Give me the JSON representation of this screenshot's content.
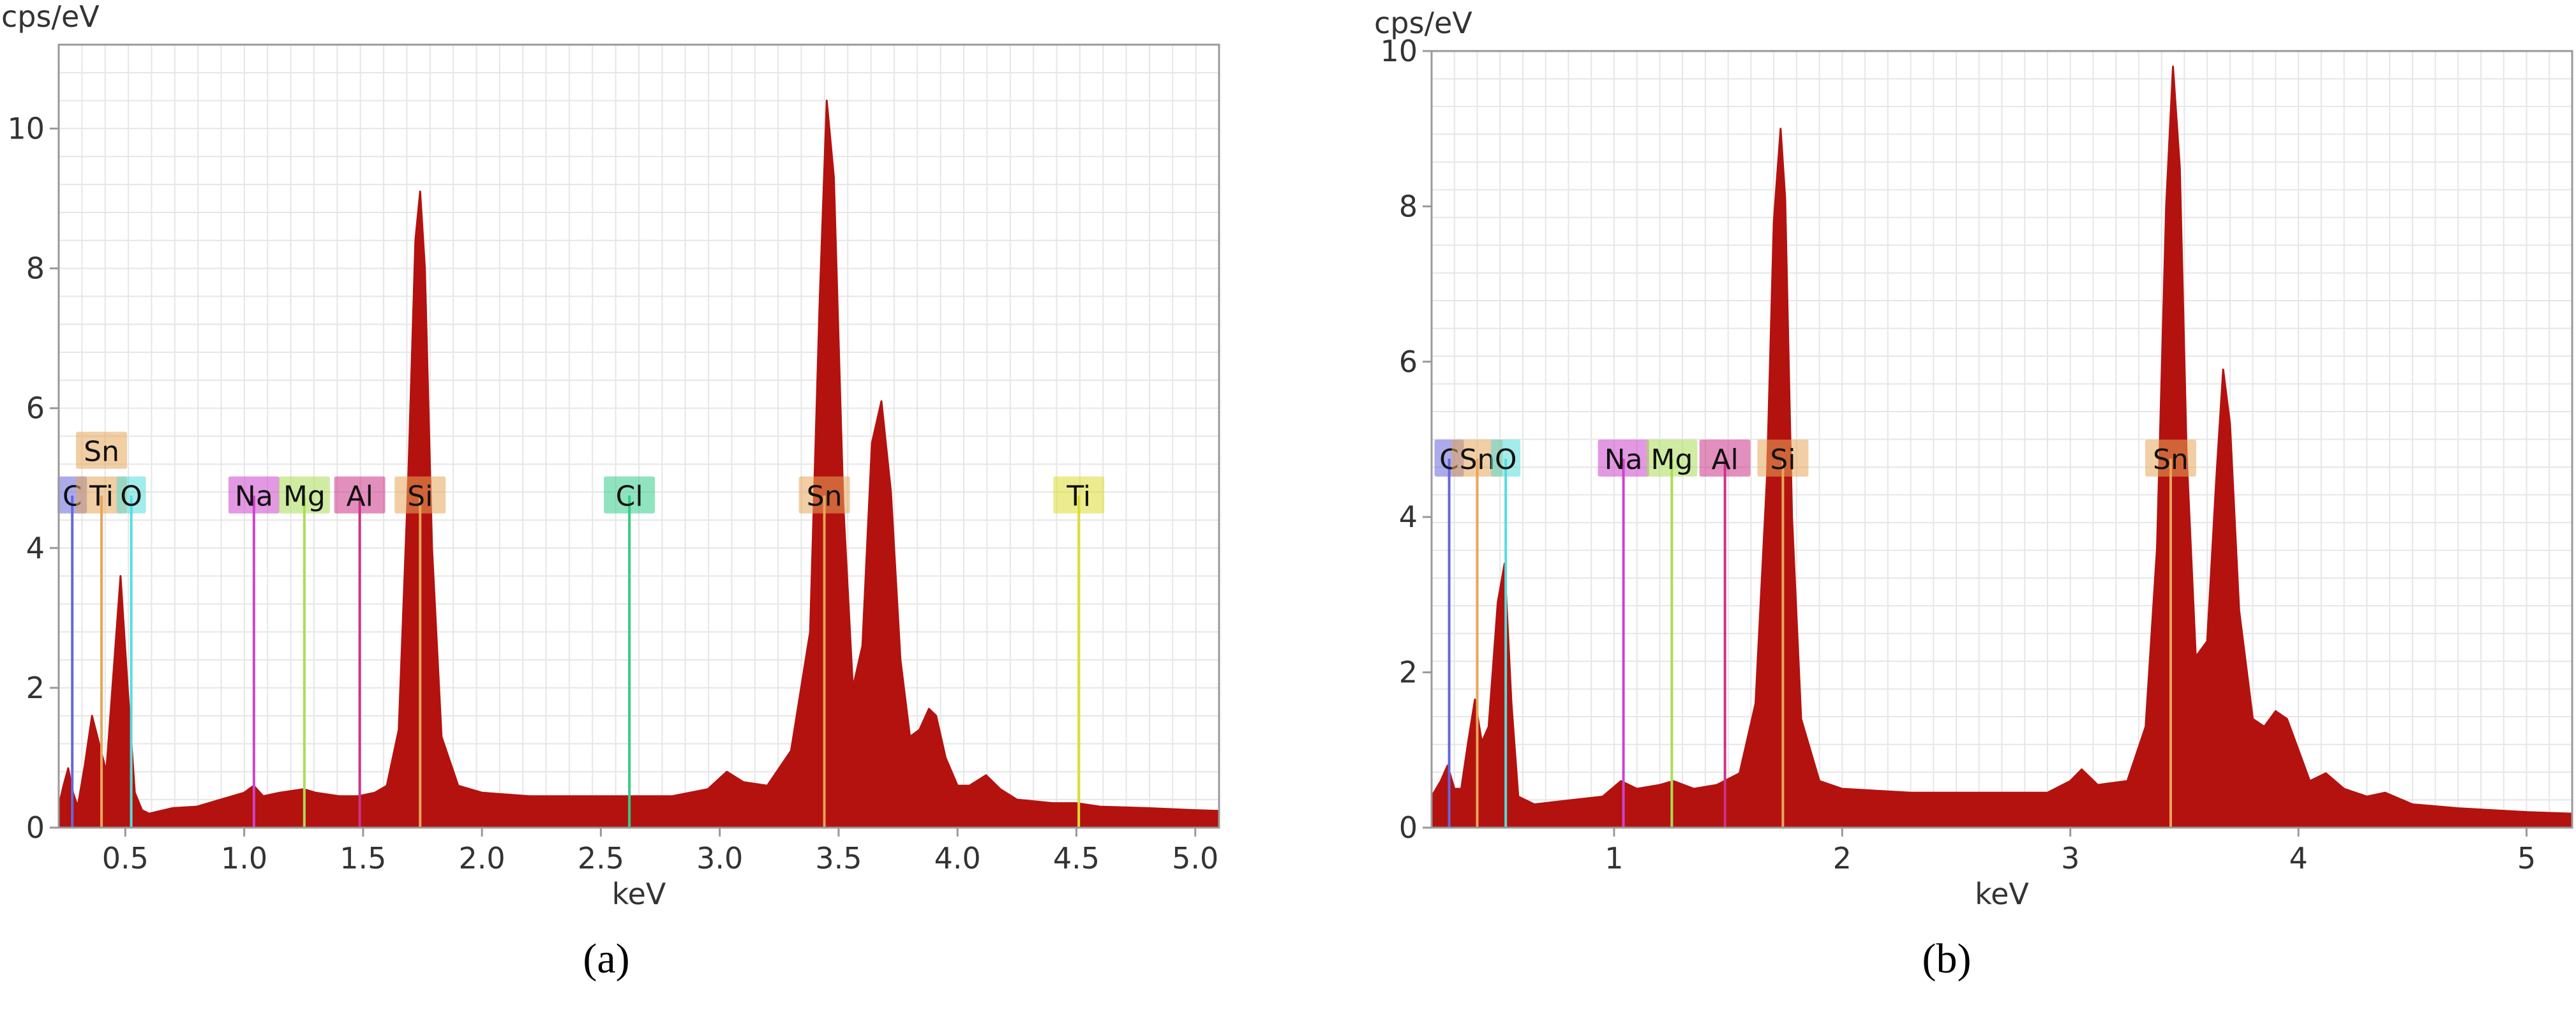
{
  "chart_data": [
    {
      "type": "area",
      "panel_label": "(a)",
      "ylabel": "cps/eV",
      "xlabel": "keV",
      "xlim": [
        0.22,
        5.1
      ],
      "ylim": [
        0,
        11.2
      ],
      "x_ticks": [
        "0.5",
        "1.0",
        "1.5",
        "2.0",
        "2.5",
        "3.0",
        "3.5",
        "4.0",
        "4.5",
        "5.0"
      ],
      "x_tick_values": [
        0.5,
        1.0,
        1.5,
        2.0,
        2.5,
        3.0,
        3.5,
        4.0,
        4.5,
        5.0
      ],
      "y_ticks": [
        "0",
        "2",
        "4",
        "6",
        "8",
        "10"
      ],
      "y_tick_values": [
        0,
        2,
        4,
        6,
        8,
        10
      ],
      "grid": true,
      "fill_color": "#b3120f",
      "series": [
        {
          "x": [
            0.22,
            0.24,
            0.26,
            0.28,
            0.3,
            0.33,
            0.36,
            0.39,
            0.42,
            0.45,
            0.48,
            0.51,
            0.54,
            0.57,
            0.6,
            0.7,
            0.8,
            0.9,
            1.0,
            1.04,
            1.08,
            1.15,
            1.25,
            1.3,
            1.4,
            1.48,
            1.55,
            1.6,
            1.65,
            1.69,
            1.72,
            1.74,
            1.76,
            1.79,
            1.83,
            1.9,
            2.0,
            2.2,
            2.4,
            2.6,
            2.8,
            2.95,
            3.03,
            3.1,
            3.2,
            3.3,
            3.38,
            3.42,
            3.45,
            3.48,
            3.52,
            3.56,
            3.6,
            3.64,
            3.68,
            3.72,
            3.76,
            3.8,
            3.84,
            3.88,
            3.91,
            3.95,
            4.0,
            4.05,
            4.12,
            4.18,
            4.25,
            4.4,
            4.5,
            4.6,
            4.8,
            5.0,
            5.1
          ],
          "y": [
            0.3,
            0.6,
            0.85,
            0.5,
            0.3,
            0.9,
            1.6,
            1.2,
            0.8,
            2.2,
            3.6,
            2.0,
            0.5,
            0.25,
            0.2,
            0.28,
            0.3,
            0.4,
            0.5,
            0.6,
            0.45,
            0.5,
            0.55,
            0.5,
            0.45,
            0.45,
            0.5,
            0.6,
            1.4,
            5.0,
            8.4,
            9.1,
            8.0,
            4.0,
            1.3,
            0.6,
            0.5,
            0.45,
            0.45,
            0.45,
            0.45,
            0.55,
            0.8,
            0.65,
            0.6,
            1.1,
            2.8,
            7.5,
            10.4,
            9.3,
            4.6,
            2.0,
            2.6,
            5.5,
            6.1,
            4.8,
            2.4,
            1.3,
            1.4,
            1.7,
            1.6,
            1.0,
            0.6,
            0.6,
            0.75,
            0.55,
            0.4,
            0.35,
            0.35,
            0.3,
            0.28,
            0.25,
            0.24
          ]
        }
      ],
      "element_markers": [
        {
          "label": "C",
          "energy": 0.277,
          "color": "#6666dd"
        },
        {
          "label": "Ti",
          "energy": 0.4,
          "color": "#e8a65a"
        },
        {
          "label": "Sn",
          "energy": 0.4,
          "color": "#e8a65a"
        },
        {
          "label": "O",
          "energy": 0.525,
          "color": "#55dddd"
        },
        {
          "label": "Na",
          "energy": 1.041,
          "color": "#cc44cc"
        },
        {
          "label": "Mg",
          "energy": 1.253,
          "color": "#aadd55"
        },
        {
          "label": "Al",
          "energy": 1.486,
          "color": "#cc3388"
        },
        {
          "label": "Si",
          "energy": 1.74,
          "color": "#e8a65a"
        },
        {
          "label": "Cl",
          "energy": 2.62,
          "color": "#33cc88"
        },
        {
          "label": "Sn",
          "energy": 3.44,
          "color": "#e8a65a"
        },
        {
          "label": "Ti",
          "energy": 4.51,
          "color": "#dddd33"
        }
      ]
    },
    {
      "type": "area",
      "panel_label": "(b)",
      "ylabel": "cps/eV",
      "xlabel": "keV",
      "xlim": [
        0.2,
        5.2
      ],
      "ylim": [
        0,
        10
      ],
      "x_ticks": [
        "1",
        "2",
        "3",
        "4",
        "5"
      ],
      "x_tick_values": [
        1,
        2,
        3,
        4,
        5
      ],
      "y_ticks": [
        "0",
        "2",
        "4",
        "6",
        "8",
        "10"
      ],
      "y_tick_values": [
        0,
        2,
        4,
        6,
        8,
        10
      ],
      "grid": true,
      "fill_color": "#b3120f",
      "series": [
        {
          "x": [
            0.2,
            0.24,
            0.27,
            0.3,
            0.33,
            0.36,
            0.39,
            0.42,
            0.45,
            0.49,
            0.52,
            0.55,
            0.58,
            0.65,
            0.8,
            0.95,
            1.03,
            1.1,
            1.2,
            1.26,
            1.35,
            1.45,
            1.55,
            1.62,
            1.67,
            1.7,
            1.73,
            1.75,
            1.78,
            1.82,
            1.9,
            2.0,
            2.3,
            2.6,
            2.9,
            3.0,
            3.05,
            3.12,
            3.25,
            3.33,
            3.38,
            3.42,
            3.45,
            3.48,
            3.51,
            3.55,
            3.6,
            3.64,
            3.67,
            3.7,
            3.74,
            3.8,
            3.85,
            3.9,
            3.95,
            4.0,
            4.05,
            4.12,
            4.2,
            4.3,
            4.38,
            4.5,
            4.7,
            5.0,
            5.2
          ],
          "y": [
            0.4,
            0.6,
            0.8,
            0.5,
            0.5,
            1.1,
            1.65,
            1.1,
            1.3,
            2.9,
            3.4,
            1.6,
            0.4,
            0.3,
            0.35,
            0.4,
            0.6,
            0.5,
            0.55,
            0.6,
            0.5,
            0.55,
            0.7,
            1.6,
            4.5,
            7.8,
            9.0,
            8.1,
            4.0,
            1.4,
            0.6,
            0.5,
            0.45,
            0.45,
            0.45,
            0.6,
            0.75,
            0.55,
            0.6,
            1.3,
            3.6,
            8.0,
            9.8,
            8.5,
            4.8,
            2.2,
            2.4,
            4.5,
            5.9,
            5.2,
            2.8,
            1.4,
            1.3,
            1.5,
            1.4,
            1.0,
            0.6,
            0.7,
            0.5,
            0.4,
            0.45,
            0.3,
            0.25,
            0.2,
            0.18
          ]
        }
      ],
      "element_markers": [
        {
          "label": "C",
          "energy": 0.277,
          "color": "#6666dd"
        },
        {
          "label": "Sn",
          "energy": 0.4,
          "color": "#e8a65a"
        },
        {
          "label": "O",
          "energy": 0.525,
          "color": "#55dddd"
        },
        {
          "label": "Na",
          "energy": 1.041,
          "color": "#cc44cc"
        },
        {
          "label": "Mg",
          "energy": 1.253,
          "color": "#aadd55"
        },
        {
          "label": "Al",
          "energy": 1.486,
          "color": "#cc3388"
        },
        {
          "label": "Si",
          "energy": 1.74,
          "color": "#e8a65a"
        },
        {
          "label": "Sn",
          "energy": 3.44,
          "color": "#e8a65a"
        }
      ]
    }
  ]
}
